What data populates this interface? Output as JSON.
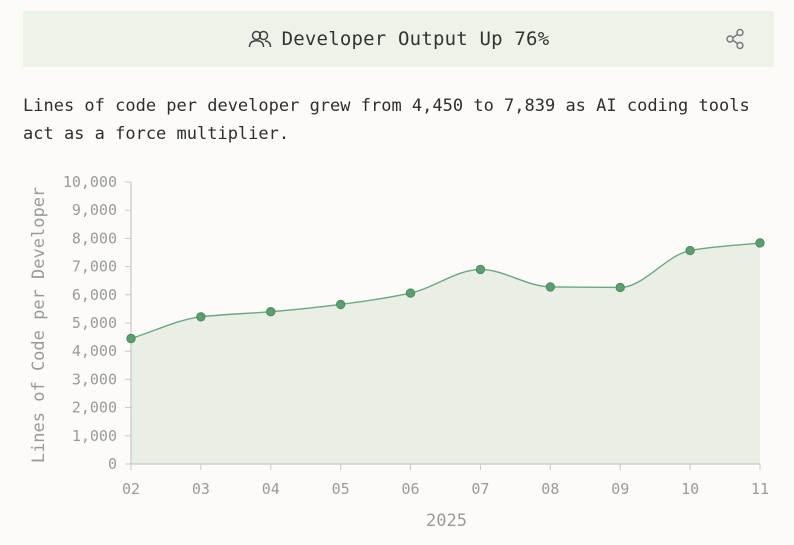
{
  "header": {
    "title": "Developer Output Up 76%",
    "title_icon": "users-icon",
    "share_icon": "share-icon"
  },
  "description": "Lines of code per developer grew from 4,450 to 7,839 as AI coding tools act as a force multiplier.",
  "colors": {
    "line": "#6fa583",
    "point": "#5e9c72",
    "area": "#e9efe4",
    "axis": "#c8c8c8"
  },
  "chart_data": {
    "type": "area",
    "title": "Developer Output Up 76%",
    "xlabel": "2025",
    "ylabel": "Lines of Code per Developer",
    "categories": [
      "02",
      "03",
      "04",
      "05",
      "06",
      "07",
      "08",
      "09",
      "10",
      "11"
    ],
    "values": [
      4450,
      5220,
      5400,
      5660,
      6060,
      6900,
      6280,
      6260,
      7570,
      7839
    ],
    "ylim": [
      0,
      10000
    ],
    "yticks": [
      0,
      1000,
      2000,
      3000,
      4000,
      5000,
      6000,
      7000,
      8000,
      9000,
      10000
    ],
    "ytick_labels": [
      "0",
      "1,000",
      "2,000",
      "3,000",
      "4,000",
      "5,000",
      "6,000",
      "7,000",
      "8,000",
      "9,000",
      "10,000"
    ],
    "grid": false,
    "legend": "none"
  }
}
